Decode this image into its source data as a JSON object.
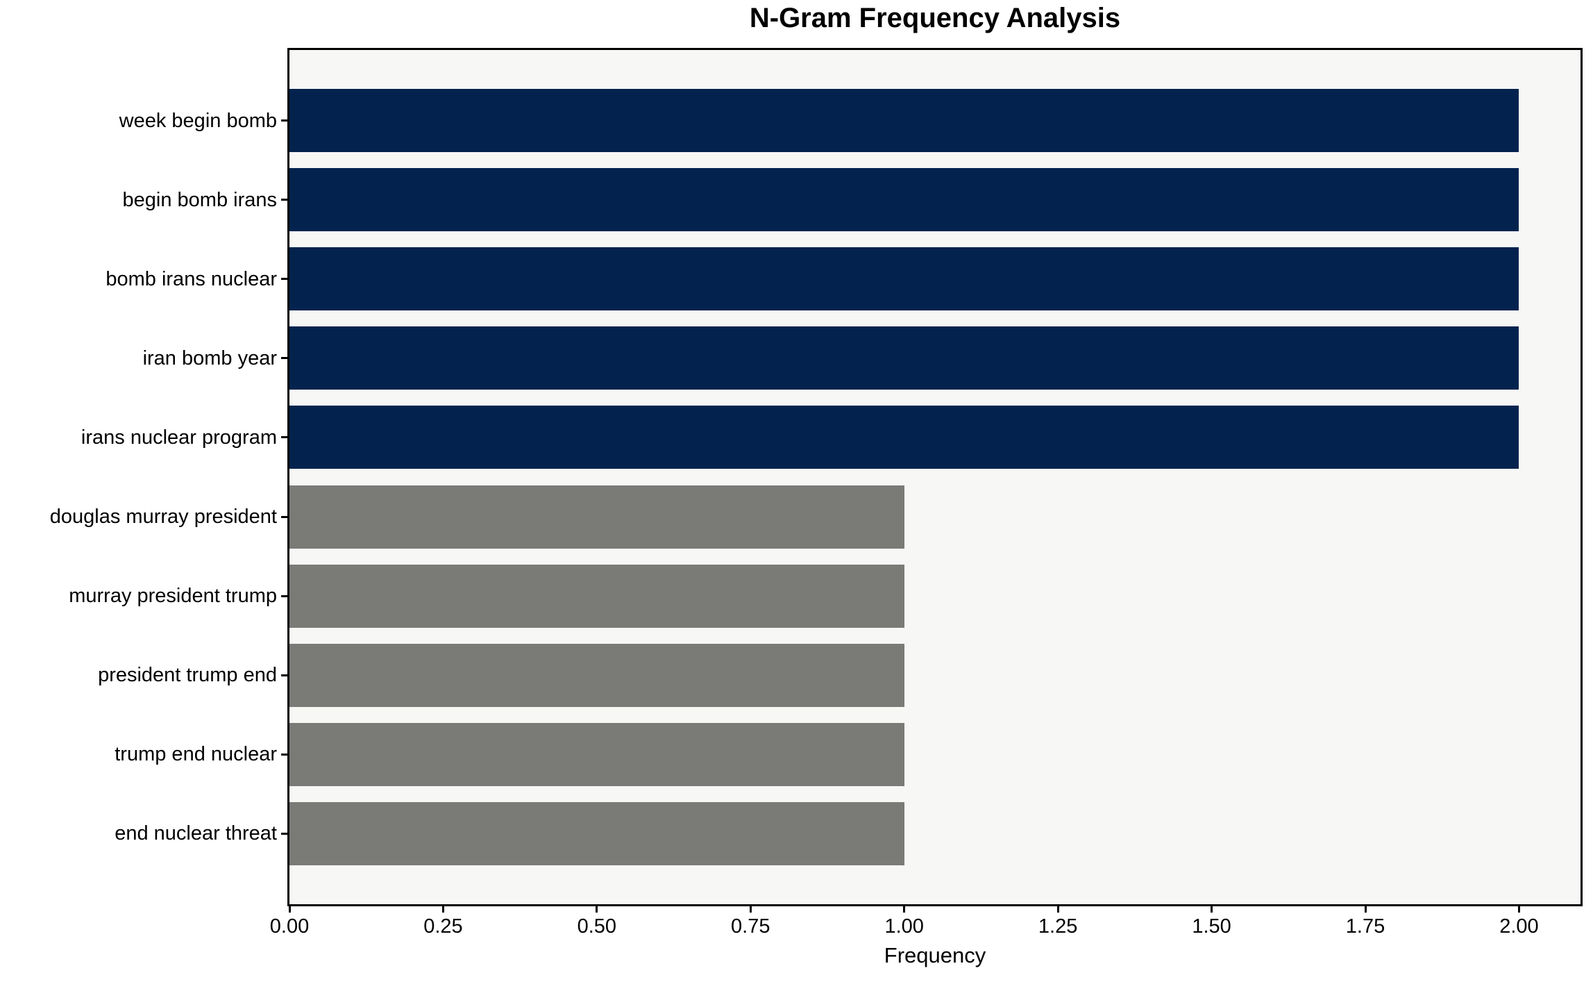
{
  "chart_data": {
    "type": "bar",
    "orientation": "horizontal",
    "title": "N-Gram Frequency Analysis",
    "xlabel": "Frequency",
    "ylabel": "",
    "categories": [
      "week begin bomb",
      "begin bomb irans",
      "bomb irans nuclear",
      "iran bomb year",
      "irans nuclear program",
      "douglas murray president",
      "murray president trump",
      "president trump end",
      "trump end nuclear",
      "end nuclear threat"
    ],
    "values": [
      2,
      2,
      2,
      2,
      2,
      1,
      1,
      1,
      1,
      1
    ],
    "bar_colors": [
      "#03234E",
      "#03234E",
      "#03234E",
      "#03234E",
      "#03234E",
      "#7A7A77",
      "#7A7A77",
      "#7A7A77",
      "#7A7A77",
      "#7A7A77"
    ],
    "xlim": [
      0,
      2.1
    ],
    "xticks": [
      "0.00",
      "0.25",
      "0.50",
      "0.75",
      "1.00",
      "1.25",
      "1.50",
      "1.75",
      "2.00"
    ],
    "grid": false,
    "legend": null,
    "colors": {
      "highlight_bar": "#03234E",
      "normal_bar": "#7A7A77",
      "plot_background": "#F7F7F6",
      "figure_background": "#FFFFFF",
      "spine": "#000000",
      "text": "#000000"
    }
  }
}
